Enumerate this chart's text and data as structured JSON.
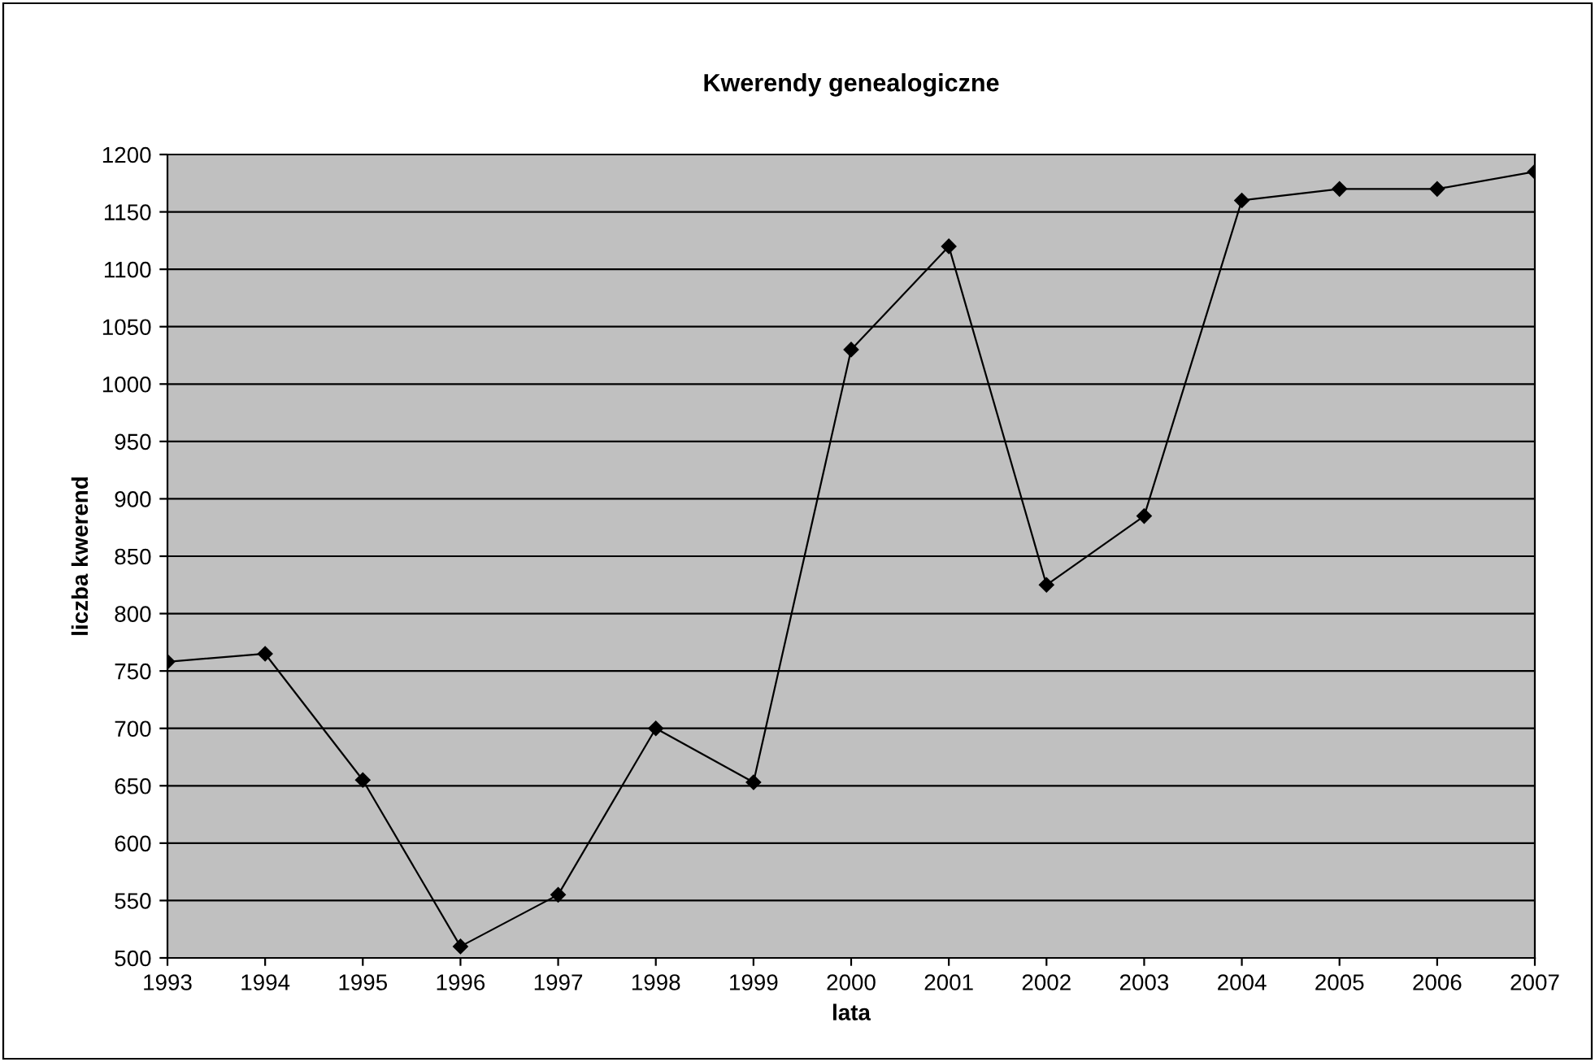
{
  "chart_data": {
    "type": "line",
    "title": "Kwerendy genealogiczne",
    "xlabel": "lata",
    "ylabel": "liczba kwerend",
    "categories": [
      "1993",
      "1994",
      "1995",
      "1996",
      "1997",
      "1998",
      "1999",
      "2000",
      "2001",
      "2002",
      "2003",
      "2004",
      "2005",
      "2006",
      "2007"
    ],
    "series": [
      {
        "color": "#000000",
        "values": [
          758,
          765,
          655,
          510,
          555,
          700,
          653,
          1030,
          1120,
          825,
          885,
          1160,
          1170,
          1170,
          1185
        ]
      }
    ],
    "ylim": [
      500,
      1200
    ],
    "yticks": [
      500,
      550,
      600,
      650,
      700,
      750,
      800,
      850,
      900,
      950,
      1000,
      1050,
      1100,
      1150,
      1200
    ],
    "grid": "y",
    "legend": false,
    "marker": "diamond",
    "line_style": "solid"
  }
}
